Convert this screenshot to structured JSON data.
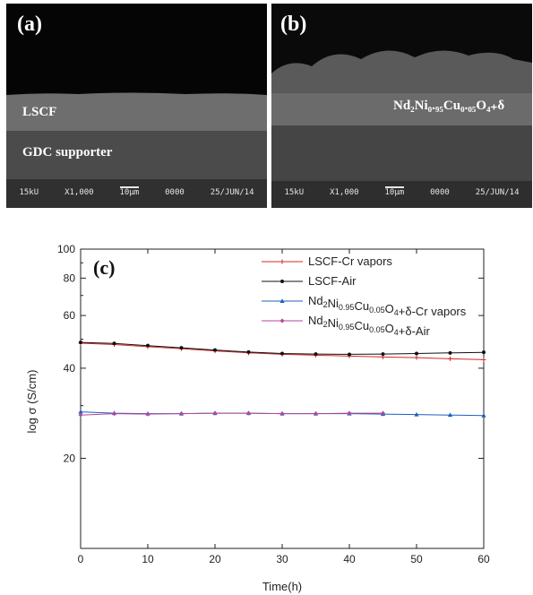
{
  "sem_a": {
    "panel_label": "(a)",
    "layer_label": "LSCF",
    "substrate_label": "GDC supporter",
    "footer": {
      "voltage": "15kU",
      "magnification": "X1,000",
      "scale": "10μm",
      "code": "0000",
      "date": "25/JUN/14"
    }
  },
  "sem_b": {
    "panel_label": "(b)",
    "layer_label": "Nd₂Ni₀.₉₅Cu₀.₀₅O₄₊δ",
    "footer": {
      "voltage": "15kU",
      "magnification": "X1,000",
      "scale": "10μm",
      "code": "0000",
      "date": "25/JUN/14"
    }
  },
  "chart_data": {
    "type": "scatter",
    "panel_label": "(c)",
    "xlabel": "Time(h)",
    "ylabel": "log σ (S/cm)",
    "xlim": [
      0,
      60
    ],
    "ylim": [
      10,
      100
    ],
    "y_scale": "log",
    "x_ticks": [
      0,
      10,
      20,
      30,
      40,
      50,
      60
    ],
    "y_ticks_labeled": [
      20,
      40,
      60,
      80,
      100
    ],
    "y_ticks_minor": [
      30,
      50,
      70,
      90
    ],
    "legend_position": "top-right",
    "series": [
      {
        "name": "LSCF-Cr vapors",
        "color": "#d62728",
        "marker": "plus",
        "x": [
          0,
          5,
          10,
          15,
          20,
          25,
          30,
          35,
          40,
          45,
          50,
          55,
          60
        ],
        "y": [
          48.5,
          48.0,
          47.2,
          46.5,
          45.7,
          45.0,
          44.5,
          44.2,
          43.9,
          43.6,
          43.4,
          43.0,
          42.7
        ]
      },
      {
        "name": "LSCF-Air",
        "color": "#111111",
        "marker": "circle",
        "x": [
          0,
          5,
          10,
          15,
          20,
          25,
          30,
          35,
          40,
          45,
          50,
          55,
          60
        ],
        "y": [
          48.8,
          48.4,
          47.6,
          46.8,
          46.0,
          45.3,
          44.8,
          44.6,
          44.5,
          44.6,
          44.8,
          45.0,
          45.2
        ]
      },
      {
        "name": "Nd2Ni0.95Cu0.05O4+δ-Cr vapors",
        "color": "#1f5fbf",
        "marker": "triangle",
        "x": [
          0,
          5,
          10,
          15,
          20,
          25,
          30,
          35,
          40,
          45,
          50,
          55,
          60
        ],
        "y": [
          28.6,
          28.3,
          28.2,
          28.2,
          28.3,
          28.3,
          28.2,
          28.2,
          28.2,
          28.1,
          28.0,
          27.9,
          27.8
        ]
      },
      {
        "name": "Nd2Ni0.95Cu0.05O4+δ-Air",
        "color": "#b5479b",
        "marker": "diamond",
        "x": [
          0,
          5,
          10,
          15,
          20,
          25,
          30,
          35,
          40,
          45
        ],
        "y": [
          27.9,
          28.2,
          28.1,
          28.2,
          28.3,
          28.3,
          28.2,
          28.2,
          28.3,
          28.3
        ]
      }
    ]
  }
}
